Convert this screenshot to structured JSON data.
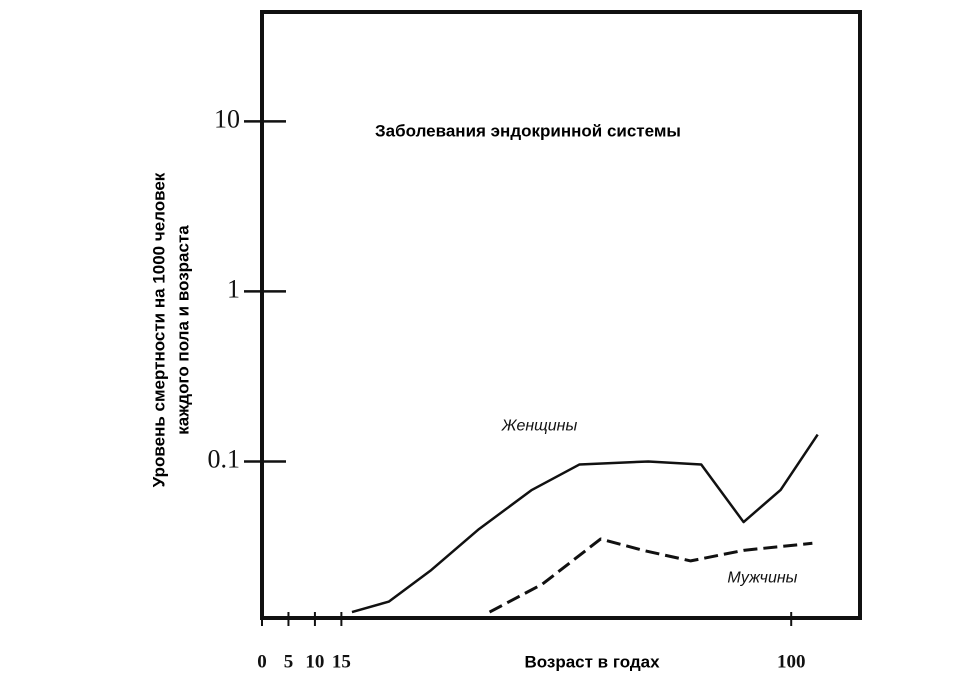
{
  "chart_data": {
    "type": "line",
    "title": "Заболевания эндокринной системы",
    "x_label": "Возраст в годах",
    "y_label": [
      "Уровень смертности на 1000 человек",
      "каждого пола и возраста"
    ],
    "log_y": true,
    "xlim": [
      0,
      113
    ],
    "xticks": [
      0,
      5,
      10,
      15,
      100
    ],
    "ylim": [
      0.012,
      44
    ],
    "yticks": [
      10,
      1,
      0.1
    ],
    "series": [
      {
        "name": "Женщины",
        "color": "#111111",
        "dashed": false,
        "x": [
          17,
          24,
          32,
          41,
          51,
          60,
          73,
          83,
          91,
          98,
          105
        ],
        "values": [
          0.013,
          0.015,
          0.023,
          0.04,
          0.068,
          0.096,
          0.1,
          0.096,
          0.044,
          0.068,
          0.144
        ]
      },
      {
        "name": "Мужчины",
        "color": "#111111",
        "dashed": true,
        "x": [
          43,
          53,
          64,
          72,
          81,
          91,
          104
        ],
        "values": [
          0.013,
          0.019,
          0.035,
          0.03,
          0.026,
          0.03,
          0.033
        ]
      }
    ]
  }
}
